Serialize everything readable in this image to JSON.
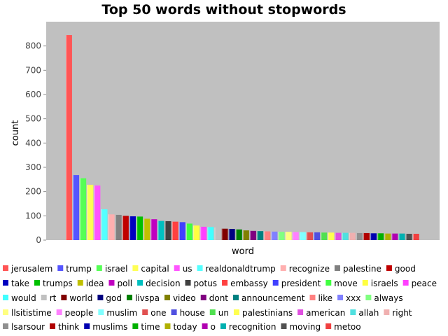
{
  "chart_data": {
    "type": "bar",
    "title": "Top 50 words without stopwords",
    "xlabel": "word",
    "ylabel": "count",
    "ylim": [
      0,
      900
    ],
    "yticks": [
      0,
      100,
      200,
      300,
      400,
      500,
      600,
      700,
      800
    ],
    "grid": false,
    "legend": "bottom",
    "series": [
      {
        "name": "jerusalem",
        "value": 845,
        "color": "#FF5555"
      },
      {
        "name": "trump",
        "value": 268,
        "color": "#5555FF"
      },
      {
        "name": "israel",
        "value": 255,
        "color": "#55FF55"
      },
      {
        "name": "capital",
        "value": 228,
        "color": "#FFFF55"
      },
      {
        "name": "us",
        "value": 225,
        "color": "#FF55FF"
      },
      {
        "name": "realdonaldtrump",
        "value": 127,
        "color": "#55FFFF"
      },
      {
        "name": "recognize",
        "value": 106,
        "color": "#FFAFAF"
      },
      {
        "name": "palestine",
        "value": 104,
        "color": "#808080"
      },
      {
        "name": "good",
        "value": 100,
        "color": "#C00000"
      },
      {
        "name": "take",
        "value": 98,
        "color": "#0000C0"
      },
      {
        "name": "trumps",
        "value": 97,
        "color": "#00C000"
      },
      {
        "name": "idea",
        "value": 88,
        "color": "#C0C000"
      },
      {
        "name": "poll",
        "value": 86,
        "color": "#C000C0"
      },
      {
        "name": "decision",
        "value": 79,
        "color": "#00C0C0"
      },
      {
        "name": "potus",
        "value": 78,
        "color": "#404040"
      },
      {
        "name": "embassy",
        "value": 76,
        "color": "#FF4040"
      },
      {
        "name": "president",
        "value": 74,
        "color": "#4040FF"
      },
      {
        "name": "move",
        "value": 68,
        "color": "#40FF40"
      },
      {
        "name": "israels",
        "value": 60,
        "color": "#FFFF40"
      },
      {
        "name": "peace",
        "value": 55,
        "color": "#FF40FF"
      },
      {
        "name": "would",
        "value": 54,
        "color": "#40FFFF"
      },
      {
        "name": "rt",
        "value": 52,
        "color": "#C0C0C0"
      },
      {
        "name": "world",
        "value": 47,
        "color": "#800000"
      },
      {
        "name": "god",
        "value": 46,
        "color": "#000080"
      },
      {
        "name": "livspa",
        "value": 44,
        "color": "#008000"
      },
      {
        "name": "video",
        "value": 40,
        "color": "#808000"
      },
      {
        "name": "dont",
        "value": 38,
        "color": "#800080"
      },
      {
        "name": "announcement",
        "value": 37,
        "color": "#008080"
      },
      {
        "name": "like",
        "value": 36,
        "color": "#FF8080"
      },
      {
        "name": "xxx",
        "value": 35,
        "color": "#8080FF"
      },
      {
        "name": "always",
        "value": 34,
        "color": "#80FF80"
      },
      {
        "name": "llsitistime",
        "value": 34,
        "color": "#FFFF80"
      },
      {
        "name": "people",
        "value": 33,
        "color": "#FF80FF"
      },
      {
        "name": "muslim",
        "value": 33,
        "color": "#80FFFF"
      },
      {
        "name": "one",
        "value": 32,
        "color": "#E05050"
      },
      {
        "name": "house",
        "value": 32,
        "color": "#5050E0"
      },
      {
        "name": "un",
        "value": 31,
        "color": "#50E050"
      },
      {
        "name": "palestinians",
        "value": 31,
        "color": "#FFFF50"
      },
      {
        "name": "american",
        "value": 30,
        "color": "#E050E0"
      },
      {
        "name": "allah",
        "value": 30,
        "color": "#50E0E0"
      },
      {
        "name": "right",
        "value": 30,
        "color": "#F0B0B0"
      },
      {
        "name": "lsarsour",
        "value": 29,
        "color": "#909090"
      },
      {
        "name": "think",
        "value": 29,
        "color": "#B00000"
      },
      {
        "name": "muslims",
        "value": 28,
        "color": "#0000B0"
      },
      {
        "name": "time",
        "value": 28,
        "color": "#00B000"
      },
      {
        "name": "today",
        "value": 27,
        "color": "#B0B000"
      },
      {
        "name": "o",
        "value": 27,
        "color": "#B000B0"
      },
      {
        "name": "recognition",
        "value": 27,
        "color": "#00B0B0"
      },
      {
        "name": "moving",
        "value": 26,
        "color": "#505050"
      },
      {
        "name": "metoo",
        "value": 26,
        "color": "#F04040"
      }
    ]
  }
}
